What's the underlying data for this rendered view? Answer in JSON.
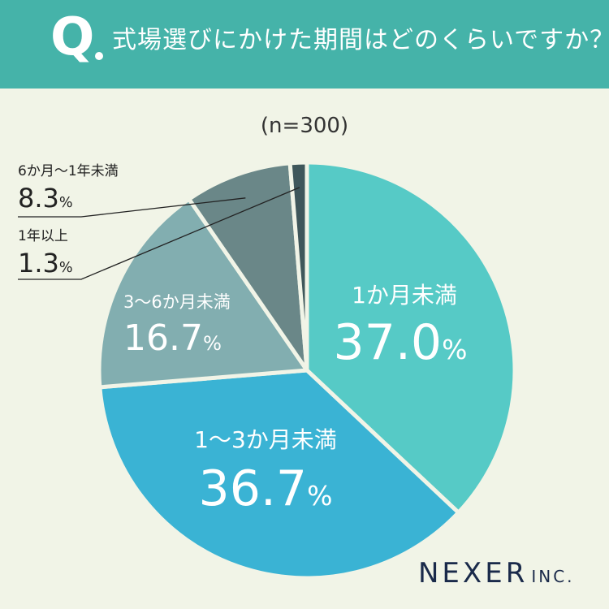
{
  "header": {
    "q_mark": "Q",
    "question": "式場選びにかけた期間はどのくらいですか？"
  },
  "sample_size": "(n=300)",
  "chart_data": {
    "type": "pie",
    "categories": [
      "1か月未満",
      "1〜3か月未満",
      "3〜6か月未満",
      "6か月〜1年未満",
      "1年以上"
    ],
    "values": [
      37.0,
      36.7,
      16.7,
      8.3,
      1.3
    ],
    "unit": "%",
    "colors": [
      "#56cac6",
      "#3ab3d4",
      "#82aeb0",
      "#6a8788",
      "#3f575b"
    ],
    "labels": [
      {
        "category": "1か月未満",
        "value": "37.0",
        "unit": "%"
      },
      {
        "category": "1〜3か月未満",
        "value": "36.7",
        "unit": "%"
      },
      {
        "category": "3〜6か月未満",
        "value": "16.7",
        "unit": "%"
      },
      {
        "category": "6か月〜1年未満",
        "value": "8.3",
        "unit": "%"
      },
      {
        "category": "1年以上",
        "value": "1.3",
        "unit": "%"
      }
    ]
  },
  "brand": {
    "name": "NEXER",
    "suffix": "INC."
  }
}
